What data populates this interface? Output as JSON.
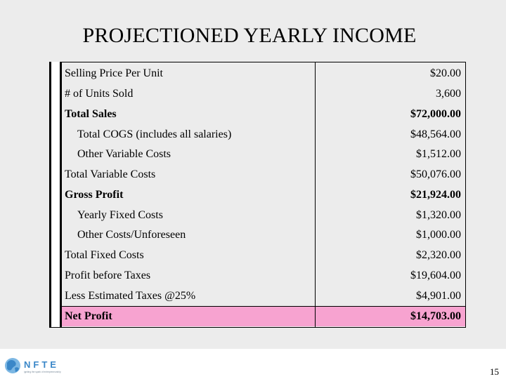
{
  "slide": {
    "title": "PROJECTIONED YEARLY INCOME",
    "page_number": "15",
    "highlight_color": "#f7a3d0",
    "background_color": "#ececec"
  },
  "logo": {
    "text": "NFTE",
    "tagline": "igniting the spark of entrepreneurship",
    "colors": [
      "#3a87c8",
      "#7cb7e3"
    ]
  },
  "income_table": {
    "rows": [
      {
        "label": "Selling Price Per Unit",
        "value": "$20.00"
      },
      {
        "label": "# of Units Sold",
        "value": "3,600"
      },
      {
        "label": "Total Sales",
        "value": "$72,000.00"
      },
      {
        "label": "Total COGS (includes all salaries)",
        "value": "$48,564.00"
      },
      {
        "label": "Other Variable Costs",
        "value": "$1,512.00"
      },
      {
        "label": "Total Variable Costs",
        "value": "$50,076.00"
      },
      {
        "label": "Gross Profit",
        "value": "$21,924.00"
      },
      {
        "label": "Yearly Fixed Costs",
        "value": "$1,320.00"
      },
      {
        "label": "Other Costs/Unforeseen",
        "value": "$1,000.00"
      },
      {
        "label": "Total Fixed Costs",
        "value": "$2,320.00"
      },
      {
        "label": "Profit before Taxes",
        "value": "$19,604.00"
      },
      {
        "label": "Less Estimated Taxes @25%",
        "value": "$4,901.00"
      },
      {
        "label": "Net Profit",
        "value": "$14,703.00"
      }
    ]
  }
}
